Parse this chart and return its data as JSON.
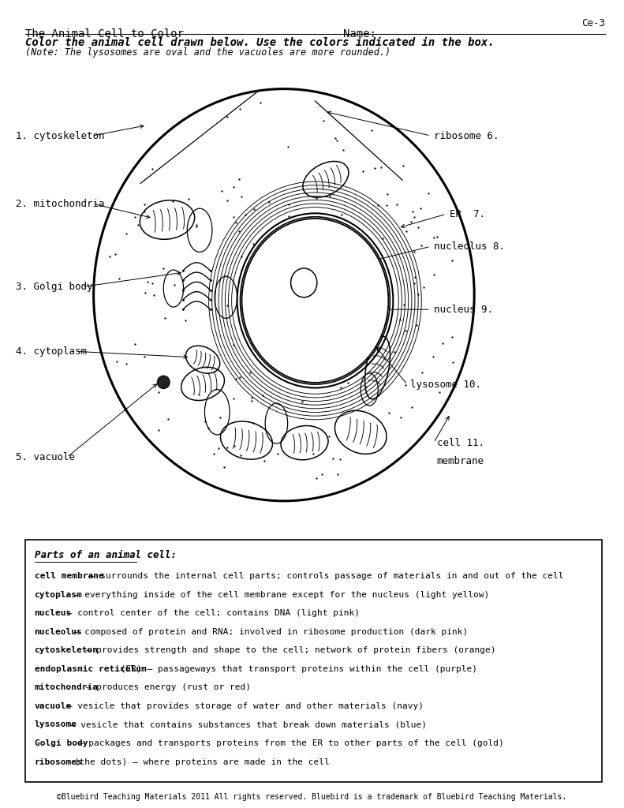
{
  "page_width": 7.91,
  "page_height": 10.24,
  "background_color": "#ffffff",
  "top_right_label": "Ce-3",
  "title_left": "The Animal Cell to Color",
  "title_right": "Name:",
  "subtitle": "Color the animal cell drawn below. Use the colors indicated in the box.",
  "note": "(Note: The lysosomes are oval and the vacuoles are more rounded.)",
  "parts_title": "Parts of an animal cell:",
  "parts_entries": [
    {
      "bold": "cell membrane",
      "rest": " – surrounds the internal cell parts; controls passage of materials in and out of the cell"
    },
    {
      "bold": "cytoplasm",
      "rest": " – everything inside of the cell membrane except for the nucleus (light yellow)"
    },
    {
      "bold": "nucleus",
      "rest": " – control center of the cell; contains DNA (light pink)"
    },
    {
      "bold": "nucleolus",
      "rest": " – composed of protein and RNA; involved in ribosome production (dark pink)"
    },
    {
      "bold": "cytoskeleton",
      "rest": " – provides strength and shape to the cell; network of protein fibers (orange)"
    },
    {
      "bold": "endoplasmic reticulum",
      "rest": " (ER) – passageways that transport proteins within the cell (purple)"
    },
    {
      "bold": "mitochondria",
      "rest": " – produces energy (rust or red)"
    },
    {
      "bold": "vacuole",
      "rest": " – vesicle that provides storage of water and other materials (navy)"
    },
    {
      "bold": "lysosome",
      "rest": " – vesicle that contains substances that break down materials (blue)"
    },
    {
      "bold": "Golgi body",
      "rest": " – packages and transports proteins from the ER to other parts of the cell (gold)"
    },
    {
      "bold": "ribosomes",
      "rest": " (the dots) – where proteins are made in the cell"
    }
  ],
  "footer": "©Bluebird Teaching Materials 2011 All rights reserved. Bluebird is a trademark of Bluebird Teaching Materials."
}
